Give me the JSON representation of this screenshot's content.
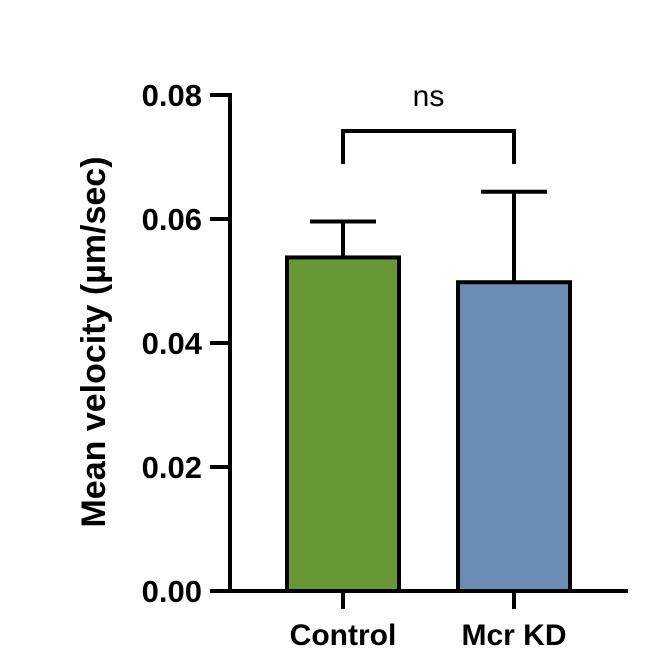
{
  "chart_data": {
    "type": "bar",
    "title": "",
    "xlabel": "",
    "ylabel": "Mean velocity (µm/sec)",
    "ylim": [
      0,
      0.08
    ],
    "yticks": [
      "0.00",
      "0.02",
      "0.04",
      "0.06",
      "0.08"
    ],
    "categories": [
      "Control",
      "Mcr KD"
    ],
    "values": [
      0.0538,
      0.0498
    ],
    "errors": [
      0.0058,
      0.0146
    ],
    "colors": [
      "#679834",
      "#6b8db4"
    ],
    "significance": {
      "label": "ns",
      "pair": [
        "Control",
        "Mcr KD"
      ]
    },
    "grid": false
  }
}
